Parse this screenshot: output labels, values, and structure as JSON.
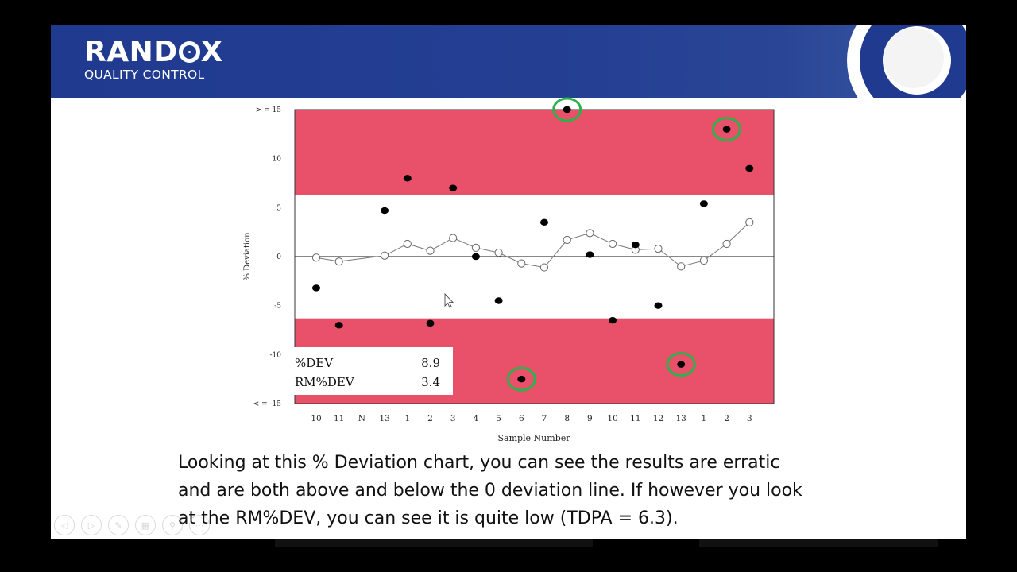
{
  "banner": {
    "logo_main_left": "RAND",
    "logo_main_right": "X",
    "logo_sub": "QUALITY CONTROL",
    "colors": {
      "banner": "#243f92",
      "ring": "#1f3a8f"
    }
  },
  "chart_data": {
    "type": "scatter",
    "xlabel": "Sample Number",
    "ylabel": "% Deviation",
    "categories": [
      "10",
      "11",
      "N",
      "13",
      "1",
      "2",
      "3",
      "4",
      "5",
      "6",
      "7",
      "8",
      "9",
      "10",
      "11",
      "12",
      "13",
      "1",
      "2",
      "3"
    ],
    "y_ticks": [
      "> = 15",
      "10",
      "5",
      "0",
      "-5",
      "-10",
      "< = -15"
    ],
    "ylim": [
      -15,
      15
    ],
    "limits": {
      "upper": 6.3,
      "lower": -6.3
    },
    "series": [
      {
        "name": "%DEV",
        "marker": "filled",
        "points": [
          [
            0,
            -3.2
          ],
          [
            1,
            -7.0
          ],
          [
            3,
            4.7
          ],
          [
            4,
            8.0
          ],
          [
            5,
            -6.8
          ],
          [
            6,
            7.0
          ],
          [
            7,
            0.0
          ],
          [
            8,
            -4.5
          ],
          [
            9,
            -12.5
          ],
          [
            10,
            3.5
          ],
          [
            11,
            15.0
          ],
          [
            12,
            0.2
          ],
          [
            13,
            -6.5
          ],
          [
            14,
            1.2
          ],
          [
            15,
            -5.0
          ],
          [
            16,
            -11.0
          ],
          [
            17,
            5.4
          ],
          [
            18,
            13.0
          ],
          [
            19,
            9.0
          ]
        ]
      },
      {
        "name": "RM%DEV",
        "marker": "open",
        "points": [
          [
            0,
            -0.1
          ],
          [
            1,
            -0.5
          ],
          [
            3,
            0.1
          ],
          [
            4,
            1.3
          ],
          [
            5,
            0.6
          ],
          [
            6,
            1.9
          ],
          [
            7,
            0.9
          ],
          [
            8,
            0.4
          ],
          [
            9,
            -0.7
          ],
          [
            10,
            -1.1
          ],
          [
            11,
            1.7
          ],
          [
            12,
            2.4
          ],
          [
            13,
            1.3
          ],
          [
            14,
            0.7
          ],
          [
            15,
            0.8
          ],
          [
            16,
            -1.0
          ],
          [
            17,
            -0.4
          ],
          [
            18,
            1.3
          ],
          [
            19,
            3.5
          ]
        ]
      }
    ],
    "circled_points": [
      11,
      18,
      9,
      16
    ],
    "summary": [
      {
        "label": "%DEV",
        "value": "8.9"
      },
      {
        "label": "RM%DEV",
        "value": "3.4"
      }
    ],
    "colors": {
      "limit_zone": "#e9506a",
      "circle": "#2bb24c",
      "marker": "#000000"
    }
  },
  "caption": {
    "line1": "Looking at this % Deviation chart, you can see the results are erratic",
    "line2": "and are both above and below the 0 deviation line. If however you look",
    "line3": "at the RM%DEV, you can see it is quite low (TDPA = 6.3)."
  },
  "controls": [
    {
      "icon": "prev-icon",
      "glyph": "◁"
    },
    {
      "icon": "next-icon",
      "glyph": "▷"
    },
    {
      "icon": "pen-icon",
      "glyph": "✎"
    },
    {
      "icon": "slides-icon",
      "glyph": "▦"
    },
    {
      "icon": "zoom-icon",
      "glyph": "⚲"
    },
    {
      "icon": "more-icon",
      "glyph": "⋯"
    }
  ]
}
